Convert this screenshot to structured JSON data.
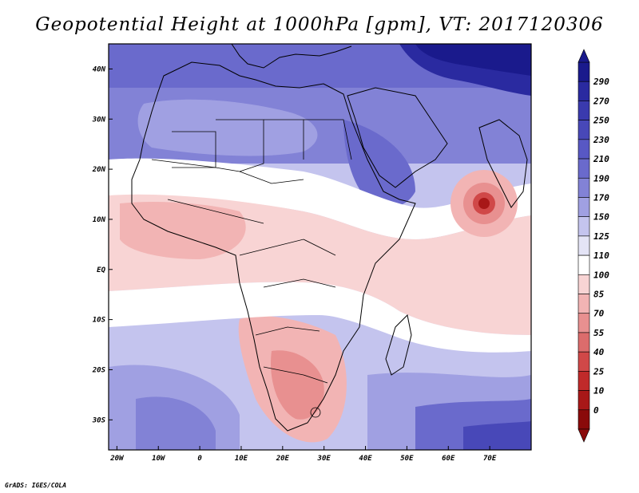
{
  "title": "Geopotential Height at 1000hPa [gpm], VT: 2017120306",
  "credit": "GrADS: IGES/COLA",
  "lon_ticks": [
    {
      "label": "20W",
      "lon": -20
    },
    {
      "label": "10W",
      "lon": -10
    },
    {
      "label": "0",
      "lon": 0
    },
    {
      "label": "10E",
      "lon": 10
    },
    {
      "label": "20E",
      "lon": 20
    },
    {
      "label": "30E",
      "lon": 30
    },
    {
      "label": "40E",
      "lon": 40
    },
    {
      "label": "50E",
      "lon": 50
    },
    {
      "label": "60E",
      "lon": 60
    },
    {
      "label": "70E",
      "lon": 70
    }
  ],
  "lat_ticks": [
    {
      "label": "40N",
      "lat": 40
    },
    {
      "label": "30N",
      "lat": 30
    },
    {
      "label": "20N",
      "lat": 20
    },
    {
      "label": "10N",
      "lat": 10
    },
    {
      "label": "EQ",
      "lat": 0
    },
    {
      "label": "10S",
      "lat": -10
    },
    {
      "label": "20S",
      "lat": -20
    },
    {
      "label": "30S",
      "lat": -30
    }
  ],
  "domain": {
    "lon_min": -22,
    "lon_max": 80,
    "lat_min": -36,
    "lat_max": 45
  },
  "colorbar": {
    "levels": [
      "290",
      "270",
      "250",
      "230",
      "210",
      "190",
      "170",
      "150",
      "125",
      "110",
      "100",
      "85",
      "70",
      "55",
      "40",
      "25",
      "10",
      "0"
    ],
    "colors": [
      "#1a1a8c",
      "#2a2aa0",
      "#3a3aae",
      "#4848b8",
      "#5858c4",
      "#6a6acc",
      "#8282d6",
      "#a0a0e2",
      "#c4c4ee",
      "#e4e4f6",
      "#ffffff",
      "#f8d4d4",
      "#f2b4b4",
      "#e89090",
      "#dc6c6c",
      "#d04848",
      "#c02a2a",
      "#a81818",
      "#8a0a0a"
    ],
    "top_color": "#1a1a8c",
    "bottom_color": "#8a0a0a"
  }
}
